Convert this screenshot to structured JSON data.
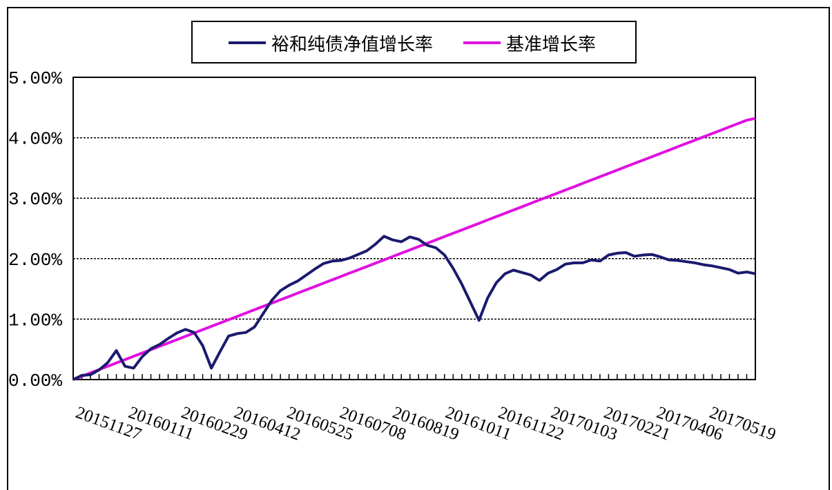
{
  "chart_data": {
    "type": "line",
    "title": "",
    "xlabel": "",
    "ylabel": "",
    "ylim": [
      0,
      0.05
    ],
    "y_ticks": [
      "0.00%",
      "1.00%",
      "2.00%",
      "3.00%",
      "4.00%",
      "5.00%"
    ],
    "y_tick_values": [
      0,
      0.01,
      0.02,
      0.03,
      0.04,
      0.05
    ],
    "x_tick_labels": [
      "20151127",
      "20160111",
      "20160229",
      "20160412",
      "20160525",
      "20160708",
      "20160819",
      "20161011",
      "20161122",
      "20170103",
      "20170221",
      "20170406",
      "20170519"
    ],
    "grid": "horizontal-dotted",
    "legend_position": "top",
    "x": [
      "2015-11-27",
      "2015-12-04",
      "2015-12-11",
      "2015-12-18",
      "2015-12-25",
      "2015-12-31",
      "2016-01-08",
      "2016-01-15",
      "2016-01-22",
      "2016-01-29",
      "2016-02-05",
      "2016-02-12",
      "2016-02-19",
      "2016-02-26",
      "2016-03-04",
      "2016-03-11",
      "2016-03-18",
      "2016-03-25",
      "2016-04-01",
      "2016-04-08",
      "2016-04-15",
      "2016-04-22",
      "2016-04-29",
      "2016-05-06",
      "2016-05-13",
      "2016-05-20",
      "2016-05-27",
      "2016-06-03",
      "2016-06-10",
      "2016-06-17",
      "2016-06-24",
      "2016-07-01",
      "2016-07-08",
      "2016-07-15",
      "2016-07-22",
      "2016-07-29",
      "2016-08-05",
      "2016-08-12",
      "2016-08-19",
      "2016-08-26",
      "2016-09-02",
      "2016-09-09",
      "2016-09-16",
      "2016-09-23",
      "2016-09-30",
      "2016-10-07",
      "2016-10-14",
      "2016-10-21",
      "2016-10-28",
      "2016-11-04",
      "2016-11-11",
      "2016-11-18",
      "2016-11-25",
      "2016-12-02",
      "2016-12-09",
      "2016-12-16",
      "2016-12-23",
      "2016-12-30",
      "2017-01-06",
      "2017-01-13",
      "2017-01-20",
      "2017-01-27",
      "2017-02-03",
      "2017-02-10",
      "2017-02-17",
      "2017-02-24",
      "2017-03-03",
      "2017-03-10",
      "2017-03-17",
      "2017-03-24",
      "2017-03-31",
      "2017-04-07",
      "2017-04-14",
      "2017-04-21",
      "2017-04-28",
      "2017-05-05",
      "2017-05-12",
      "2017-05-19",
      "2017-05-26",
      "2017-06-02"
    ],
    "series": [
      {
        "name": "裕和纯债净值增长率",
        "color": "#1a1a6e",
        "values": [
          0.0,
          0.0007,
          0.0008,
          0.0016,
          0.0028,
          0.0048,
          0.0022,
          0.0019,
          0.0038,
          0.0051,
          0.0058,
          0.0068,
          0.0077,
          0.0083,
          0.0078,
          0.0056,
          0.0019,
          0.0046,
          0.0072,
          0.0076,
          0.0078,
          0.0087,
          0.0109,
          0.0131,
          0.0147,
          0.0156,
          0.0163,
          0.0173,
          0.0183,
          0.0192,
          0.0196,
          0.0197,
          0.0201,
          0.0207,
          0.0213,
          0.0224,
          0.0237,
          0.0231,
          0.0228,
          0.0236,
          0.0232,
          0.0222,
          0.0218,
          0.0206,
          0.0184,
          0.0158,
          0.0128,
          0.0098,
          0.0135,
          0.016,
          0.0175,
          0.0181,
          0.0177,
          0.0173,
          0.0164,
          0.0176,
          0.0182,
          0.0191,
          0.0193,
          0.0193,
          0.0198,
          0.0196,
          0.0206,
          0.0209,
          0.021,
          0.0204,
          0.0206,
          0.0207,
          0.0203,
          0.0198,
          0.0197,
          0.0195,
          0.0193,
          0.019,
          0.0188,
          0.0185,
          0.0182,
          0.0176,
          0.0178,
          0.0175
        ]
      },
      {
        "name": "基准增长率",
        "color": "#e010e0",
        "values": [
          0.0,
          0.00055,
          0.0011,
          0.00165,
          0.0022,
          0.00275,
          0.0033,
          0.00385,
          0.0044,
          0.00495,
          0.0055,
          0.00605,
          0.0066,
          0.00715,
          0.0077,
          0.00825,
          0.0088,
          0.00935,
          0.0099,
          0.01045,
          0.011,
          0.01155,
          0.0121,
          0.01265,
          0.0132,
          0.01375,
          0.0143,
          0.01485,
          0.0154,
          0.01595,
          0.0165,
          0.01705,
          0.0176,
          0.01815,
          0.0187,
          0.01925,
          0.0198,
          0.02035,
          0.0209,
          0.02145,
          0.022,
          0.02255,
          0.0231,
          0.02365,
          0.0242,
          0.02475,
          0.0253,
          0.02585,
          0.0264,
          0.02695,
          0.0275,
          0.02805,
          0.0286,
          0.02915,
          0.0297,
          0.03025,
          0.0308,
          0.03135,
          0.0319,
          0.03245,
          0.033,
          0.03355,
          0.0341,
          0.03465,
          0.0352,
          0.03575,
          0.0363,
          0.03685,
          0.0374,
          0.03795,
          0.0385,
          0.03905,
          0.0396,
          0.04015,
          0.0407,
          0.04125,
          0.0418,
          0.04235,
          0.0429,
          0.0432
        ]
      }
    ]
  }
}
